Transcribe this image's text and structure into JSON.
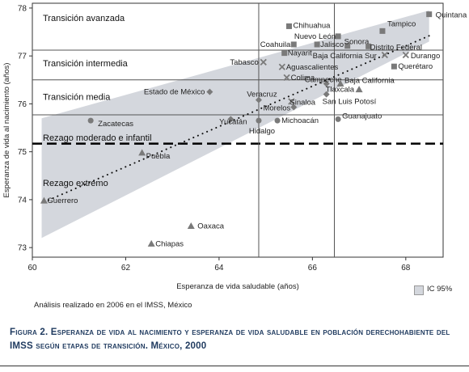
{
  "chart_data": {
    "type": "scatter",
    "xlabel": "Esperanza de vida saludable (años)",
    "ylabel": "Esperanza de vida al nacimiento (años)",
    "xlim": [
      60,
      68.8
    ],
    "ylim": [
      72.8,
      78.1
    ],
    "xticks": [
      60,
      62,
      64,
      66,
      68
    ],
    "yticks": [
      73,
      74,
      75,
      76,
      77,
      78
    ],
    "legend_placement": "bottom-right",
    "legend": [
      {
        "label": "IC 95%",
        "color": "#d4d7dd"
      }
    ],
    "stages": [
      {
        "label": "Transición avanzada",
        "y": 77.8
      },
      {
        "label": "Transición intermedia",
        "y": 76.85
      },
      {
        "label": "Transición media",
        "y": 76.15
      },
      {
        "label": "Rezago moderado e infantil",
        "y": 75.3
      },
      {
        "label": "Rezago extremo",
        "y": 74.35
      }
    ],
    "hlines": [
      77.12,
      76.5,
      75.77
    ],
    "dashed_hline": 75.17,
    "vlines": [
      64.85,
      66.47
    ],
    "trend": {
      "x0": 60.25,
      "y0": 73.95,
      "x1": 68.5,
      "y1": 77.42
    },
    "ci_band": {
      "lower": [
        [
          60.2,
          73.2
        ],
        [
          68.5,
          77.3
        ]
      ],
      "upper": [
        [
          60.2,
          75.7
        ],
        [
          68.5,
          77.95
        ]
      ]
    },
    "points": [
      {
        "state": "Quintana Roo",
        "x": 68.5,
        "y": 77.87,
        "marker": "square"
      },
      {
        "state": "Tampico",
        "x": 67.5,
        "y": 77.52,
        "marker": "square"
      },
      {
        "state": "Chihuahua",
        "x": 65.5,
        "y": 77.62,
        "marker": "square"
      },
      {
        "state": "Nuevo León",
        "x": 66.55,
        "y": 77.41,
        "marker": "square"
      },
      {
        "state": "Coahuila",
        "x": 65.6,
        "y": 77.24,
        "marker": "square"
      },
      {
        "state": "Jalisco",
        "x": 66.1,
        "y": 77.24,
        "marker": "square"
      },
      {
        "state": "Sonora",
        "x": 66.75,
        "y": 77.21,
        "marker": "square"
      },
      {
        "state": "Distrito Federal",
        "x": 67.2,
        "y": 77.2,
        "marker": "square"
      },
      {
        "state": "Nayarit",
        "x": 65.4,
        "y": 77.06,
        "marker": "square"
      },
      {
        "state": "Baja California Sur",
        "x": 67.55,
        "y": 77.02,
        "marker": "x"
      },
      {
        "state": "Durango",
        "x": 68.0,
        "y": 77.02,
        "marker": "x"
      },
      {
        "state": "Tabasco",
        "x": 64.95,
        "y": 76.87,
        "marker": "x"
      },
      {
        "state": "Aguascalientes",
        "x": 65.35,
        "y": 76.77,
        "marker": "x"
      },
      {
        "state": "Querétaro",
        "x": 67.75,
        "y": 76.78,
        "marker": "square"
      },
      {
        "state": "Colima",
        "x": 65.45,
        "y": 76.55,
        "marker": "x"
      },
      {
        "state": "Campeche",
        "x": 66.3,
        "y": 76.42,
        "marker": "diamond"
      },
      {
        "state": "Baja California",
        "x": 66.6,
        "y": 76.42,
        "marker": "triangle"
      },
      {
        "state": "Tlaxcala",
        "x": 67.0,
        "y": 76.3,
        "marker": "triangle"
      },
      {
        "state": "Estado de México",
        "x": 63.8,
        "y": 76.25,
        "marker": "diamond"
      },
      {
        "state": "Veracruz",
        "x": 64.85,
        "y": 76.08,
        "marker": "diamond"
      },
      {
        "state": "Sinaloa",
        "x": 65.55,
        "y": 76.05,
        "marker": "x"
      },
      {
        "state": "San Luis Potosí",
        "x": 66.3,
        "y": 76.2,
        "marker": "diamond"
      },
      {
        "state": "Morelos",
        "x": 65.6,
        "y": 75.93,
        "marker": "diamond"
      },
      {
        "state": "Yucatán",
        "x": 64.25,
        "y": 75.68,
        "marker": "diamond"
      },
      {
        "state": "Hidalgo",
        "x": 64.85,
        "y": 75.65,
        "marker": "circle"
      },
      {
        "state": "Michoacán",
        "x": 65.25,
        "y": 75.65,
        "marker": "circle"
      },
      {
        "state": "Guanajuato",
        "x": 66.55,
        "y": 75.68,
        "marker": "circle"
      },
      {
        "state": "Zacatecas",
        "x": 61.25,
        "y": 75.65,
        "marker": "circle"
      },
      {
        "state": "Puebla",
        "x": 62.35,
        "y": 74.98,
        "marker": "triangle"
      },
      {
        "state": "Guerrero",
        "x": 60.25,
        "y": 73.98,
        "marker": "triangle"
      },
      {
        "state": "Oaxaca",
        "x": 63.4,
        "y": 73.45,
        "marker": "triangle"
      },
      {
        "state": "Chiapas",
        "x": 62.55,
        "y": 73.08,
        "marker": "triangle"
      }
    ],
    "colors": {
      "marker": "#7a7a7a",
      "band": "#d4d7dd",
      "trend": "#111111",
      "grid": "#555555"
    }
  },
  "note": "Análisis realizado en 2006 en el IMSS, México",
  "legend_label": "IC 95%",
  "caption": {
    "label": "Figura 2.",
    "text": "Esperanza de vida al nacimiento y esperanza de vida saludable en población derechohabiente del IMSS según etapas de transición. México, 2000"
  }
}
